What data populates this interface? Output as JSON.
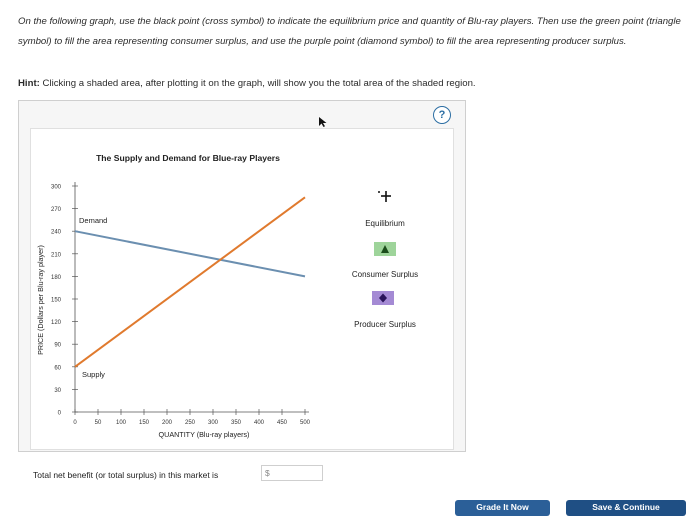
{
  "instructions": "On the following graph, use the black point (cross symbol) to indicate the equilibrium price and quantity of Blu-ray players. Then use the green point (triangle symbol) to fill the area representing consumer surplus, and use the purple point (diamond symbol) to fill the area representing producer surplus.",
  "hint": {
    "label": "Hint:",
    "text": "Clicking a shaded area, after plotting it on the graph, will show you the total area of the shaded region."
  },
  "help_button": "?",
  "chart_data": {
    "type": "line",
    "title": "The Supply and Demand for Blue-ray Players",
    "xlabel": "QUANTITY (Blu-ray players)",
    "ylabel": "PRICE (Dollars per Blu-ray player)",
    "xlim": [
      0,
      500
    ],
    "ylim": [
      0,
      300
    ],
    "x_ticks": [
      0,
      50,
      100,
      150,
      200,
      250,
      300,
      350,
      400,
      450,
      500
    ],
    "y_ticks": [
      0,
      30,
      60,
      90,
      120,
      150,
      180,
      210,
      240,
      270,
      300
    ],
    "series": [
      {
        "name": "Demand",
        "color": "#6b8fb0",
        "points": [
          [
            0,
            240
          ],
          [
            500,
            180
          ]
        ]
      },
      {
        "name": "Supply",
        "color": "#e07a2e",
        "points": [
          [
            0,
            60
          ],
          [
            500,
            285
          ]
        ]
      }
    ]
  },
  "tools": [
    {
      "label": "Equilibrium",
      "icon": "cross-icon",
      "color": "#111111"
    },
    {
      "label": "Consumer Surplus",
      "icon": "triangle-icon",
      "color": "#7ac17a"
    },
    {
      "label": "Producer Surplus",
      "icon": "diamond-icon",
      "color": "#8b6bc7"
    }
  ],
  "total": {
    "label": "Total net benefit (or total surplus) in this market is",
    "prefix": "$"
  },
  "buttons": {
    "grade": "Grade It Now",
    "save": "Save & Continue"
  }
}
